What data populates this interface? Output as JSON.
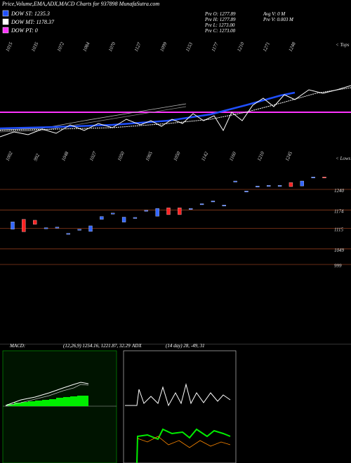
{
  "header": {
    "title": "Price,Volume,EMA,ADX,MACD Charts for 937898 MunafaSutra.com"
  },
  "legend": [
    {
      "label": "DOW ST: 1235.3",
      "color": "#1f4fff"
    },
    {
      "label": "DOW MT: 1178.37",
      "color": "#ffffff"
    },
    {
      "label": "DOW PT: 0",
      "color": "#ff33ff"
    }
  ],
  "info": {
    "left": [
      "Pre  O: 1277.89",
      "Pre  H: 1277.89",
      "Pre  L: 1273.00",
      "Pre  C: 1273.00"
    ],
    "right": [
      "Avg V: 0  M",
      "Pre  V: 0.003 M"
    ]
  },
  "tops": {
    "labels": [
      "1015",
      "1035",
      "1072",
      "1084",
      "1070",
      "1127",
      "1099",
      "1153",
      "1177",
      "1210",
      "1271",
      "1248"
    ],
    "caption": "< Tops"
  },
  "lows": {
    "labels": [
      "1002",
      "992",
      "1048",
      "1027",
      "1050",
      "1065",
      "1050",
      "1142",
      "1160",
      "1210",
      "1245"
    ],
    "caption": "< Lows"
  },
  "chart_data": {
    "type": "candlestick",
    "ylim": [
      999,
      1240
    ],
    "yticks": [
      1240,
      1174,
      1115,
      1049,
      999
    ],
    "up_color": "#3366ff",
    "down_color": "#ff2222",
    "open": [
      1112,
      1144,
      1141,
      1115,
      1117,
      1097,
      1110,
      1105,
      1144,
      1162,
      1135,
      1148,
      1171,
      1154,
      1181,
      1181,
      1177,
      1192,
      1201,
      1188,
      1265,
      1233,
      1249,
      1251,
      1251,
      1262,
      1251,
      1278,
      1280
    ],
    "close": [
      1136,
      1104,
      1128,
      1117,
      1119,
      1099,
      1112,
      1123,
      1153,
      1164,
      1151,
      1150,
      1173,
      1179,
      1159,
      1159,
      1179,
      1194,
      1203,
      1190,
      1267,
      1235,
      1251,
      1253,
      1253,
      1249,
      1267,
      1280,
      1278
    ]
  },
  "macd": {
    "label": "MACD:",
    "params": "(12,26,9) 1254.16, 1221.87, 32.29"
  },
  "adx": {
    "label": "ADX",
    "params": "(14 day) 28, -49, 31"
  }
}
